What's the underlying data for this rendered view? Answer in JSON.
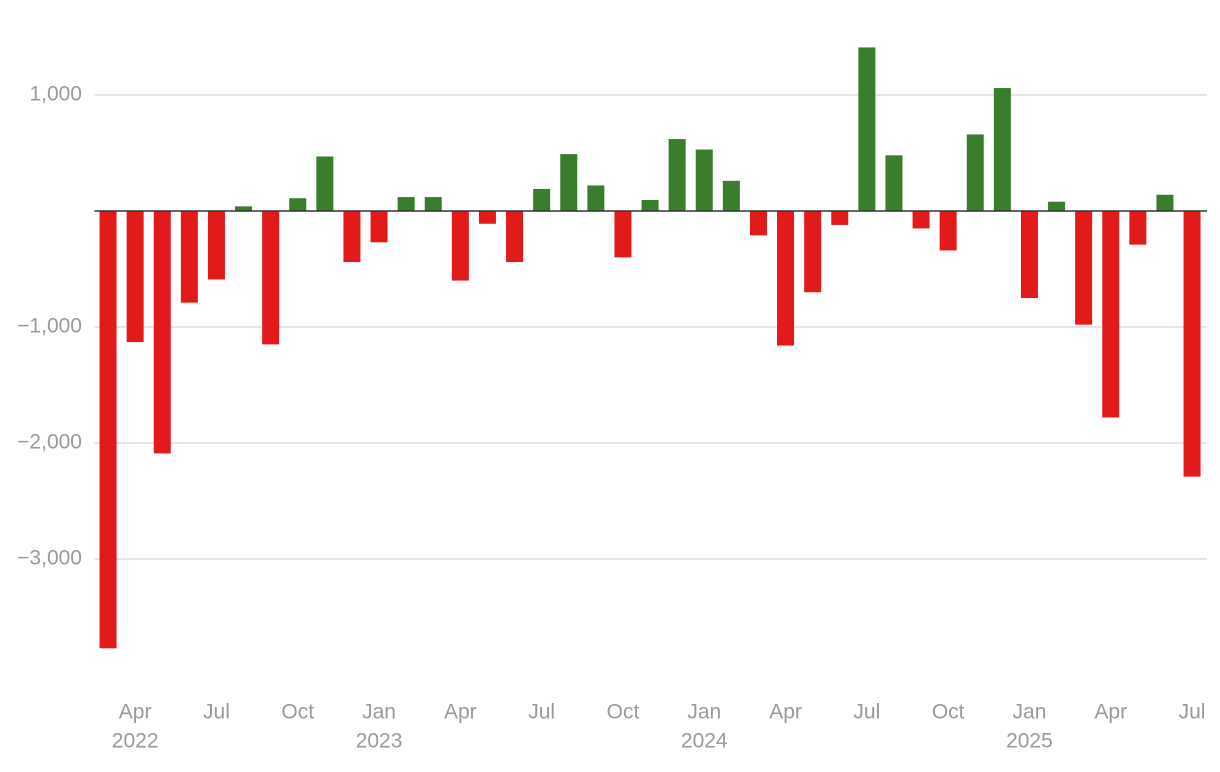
{
  "chart_data": {
    "type": "bar",
    "categories": [
      null,
      "Apr",
      null,
      null,
      "Jul",
      null,
      null,
      "Oct",
      null,
      null,
      "Jan",
      null,
      null,
      "Apr",
      null,
      null,
      "Jul",
      null,
      null,
      "Oct",
      null,
      null,
      "Jan",
      null,
      null,
      "Apr",
      null,
      null,
      "Jul",
      null,
      null,
      "Oct",
      null,
      null,
      "Jan",
      null,
      null,
      "Apr",
      null,
      null,
      "Jul"
    ],
    "category_years": [
      null,
      "2022",
      null,
      null,
      null,
      null,
      null,
      null,
      null,
      null,
      "2023",
      null,
      null,
      null,
      null,
      null,
      null,
      null,
      null,
      null,
      null,
      null,
      "2024",
      null,
      null,
      null,
      null,
      null,
      null,
      null,
      null,
      null,
      null,
      null,
      "2025",
      null,
      null,
      null,
      null,
      null,
      null
    ],
    "values": [
      -3770,
      -1130,
      -2090,
      -790,
      -590,
      40,
      -1150,
      110,
      470,
      -440,
      -270,
      120,
      120,
      -600,
      -110,
      -440,
      190,
      490,
      220,
      -400,
      95,
      620,
      530,
      260,
      -210,
      -1160,
      -700,
      -120,
      1410,
      480,
      -150,
      -340,
      660,
      1060,
      -750,
      80,
      -980,
      -1780,
      -290,
      140,
      -2290
    ],
    "positive_color": "#3a7d2c",
    "negative_color": "#e31a1c",
    "ylim": [
      -4000,
      1500
    ],
    "yticks": [
      {
        "value": 1000,
        "label": "1,000"
      },
      {
        "value": -1000,
        "label": "−1,000"
      },
      {
        "value": -2000,
        "label": "−2,000"
      },
      {
        "value": -3000,
        "label": "−3,000"
      }
    ],
    "grid": true
  }
}
